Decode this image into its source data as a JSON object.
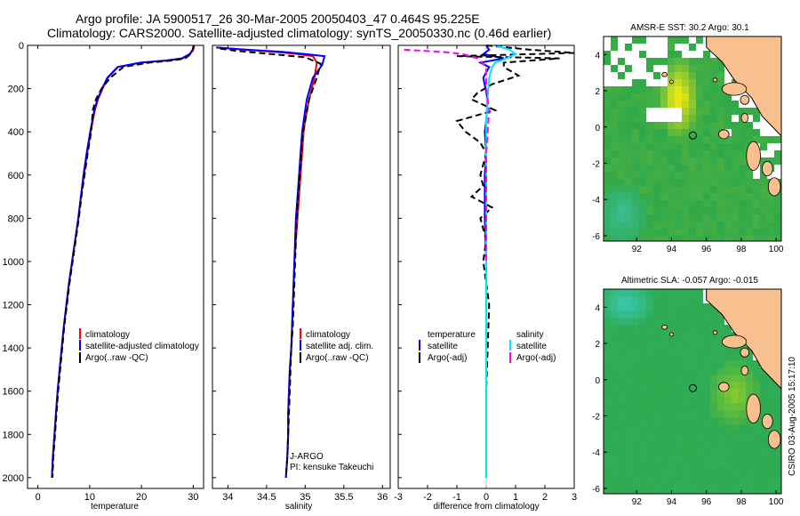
{
  "header": {
    "title_line1": "Argo profile: JA 5900517_26 30-Mar-2005 20050403_47 0.464S 95.225E",
    "title_line2": "Climatology: CARS2000. Satellite-adjusted climatology: synTS_20050330.nc (0.46d earlier)"
  },
  "footer": {
    "credit": "CSIRO 03-Aug-2005 15:17:10"
  },
  "colors": {
    "climatology": "#ff0000",
    "satellite": "#0000ff",
    "argo": "#000000",
    "sat_salinity": "#00e5ff",
    "argo_salinity": "#ff00ff",
    "land": "#f9c08f",
    "ocean": "#2fa84a",
    "hot": "#f0f000"
  },
  "chart_data": [
    {
      "type": "line",
      "id": "temperature",
      "xlabel": "temperature",
      "xlim": [
        -2,
        32
      ],
      "ylim": [
        0,
        2050
      ],
      "y_inverted": true,
      "xticks": [
        0,
        10,
        20,
        30
      ],
      "yticks": [
        0,
        200,
        400,
        600,
        800,
        1000,
        1200,
        1400,
        1600,
        1800,
        2000
      ],
      "legend": [
        "climatology",
        "satellite-adjusted climatology",
        "Argo(..raw -QC)"
      ],
      "series": [
        {
          "name": "climatology",
          "color": "#ff0000",
          "dash": false,
          "x": [
            30.2,
            30.0,
            29.4,
            28.0,
            25.0,
            20.0,
            15.5,
            13.5,
            12.5,
            11.6,
            11.0,
            10.2,
            9.5,
            8.9,
            8.3,
            7.8,
            7.2,
            6.6,
            6.0,
            5.5,
            5.0,
            4.6,
            4.2,
            3.8,
            3.5,
            3.2,
            2.9,
            2.7
          ],
          "y": [
            0,
            20,
            40,
            60,
            70,
            80,
            100,
            150,
            200,
            250,
            300,
            400,
            500,
            600,
            700,
            800,
            900,
            1000,
            1100,
            1200,
            1300,
            1400,
            1500,
            1600,
            1700,
            1800,
            1900,
            2000
          ]
        },
        {
          "name": "satellite-adjusted climatology",
          "color": "#0000ff",
          "dash": false,
          "x": [
            30.1,
            29.9,
            29.3,
            27.8,
            24.8,
            19.8,
            15.4,
            13.4,
            12.4,
            11.5,
            10.9,
            10.1,
            9.4,
            8.8,
            8.3,
            7.8,
            7.2,
            6.6,
            6.0,
            5.5,
            5.0,
            4.6,
            4.2,
            3.8,
            3.5,
            3.2,
            2.9,
            2.7
          ],
          "y": [
            0,
            20,
            40,
            60,
            70,
            80,
            100,
            150,
            200,
            250,
            300,
            400,
            500,
            600,
            700,
            800,
            900,
            1000,
            1100,
            1200,
            1300,
            1400,
            1500,
            1600,
            1700,
            1800,
            1900,
            2000
          ]
        },
        {
          "name": "Argo(..raw -QC)",
          "color": "#000000",
          "dash": true,
          "x": [
            30.1,
            29.9,
            29.5,
            28.5,
            26.0,
            21.5,
            16.5,
            14.0,
            12.3,
            11.2,
            10.6,
            10.3,
            9.6,
            9.0,
            8.4,
            7.9,
            7.3,
            6.7,
            6.1,
            5.6,
            5.1,
            4.7,
            4.3,
            3.9,
            3.6,
            3.3,
            3.0,
            2.8
          ],
          "y": [
            0,
            20,
            40,
            60,
            70,
            80,
            100,
            150,
            200,
            250,
            300,
            400,
            500,
            600,
            700,
            800,
            900,
            1000,
            1100,
            1200,
            1300,
            1400,
            1500,
            1600,
            1700,
            1800,
            1900,
            2000
          ]
        }
      ]
    },
    {
      "type": "line",
      "id": "salinity",
      "xlabel": "salinity",
      "xlim": [
        33.8,
        36.1
      ],
      "ylim": [
        0,
        2050
      ],
      "y_inverted": true,
      "xticks": [
        34,
        34.5,
        35,
        35.5,
        36
      ],
      "legend": [
        "climatology",
        "satellite adj. clim.",
        "Argo(..raw -QC)"
      ],
      "annotations": [
        "J-ARGO",
        "PI: kensuke Takeuchi"
      ],
      "series": [
        {
          "name": "climatology",
          "color": "#ff0000",
          "dash": false,
          "x": [
            33.85,
            34.2,
            34.6,
            34.9,
            35.1,
            35.15,
            35.12,
            35.05,
            35.0,
            34.98,
            34.96,
            34.94,
            34.92,
            34.9,
            34.88,
            34.86,
            34.85,
            34.84,
            34.83,
            34.82,
            34.8,
            34.79,
            34.78,
            34.78,
            34.77,
            34.76,
            34.75
          ],
          "y": [
            10,
            20,
            30,
            40,
            50,
            80,
            150,
            250,
            350,
            400,
            500,
            600,
            700,
            800,
            900,
            1000,
            1100,
            1200,
            1300,
            1400,
            1500,
            1600,
            1700,
            1800,
            1900,
            1950,
            2000
          ]
        },
        {
          "name": "satellite adj. clim.",
          "color": "#0000ff",
          "dash": false,
          "x": [
            33.85,
            34.25,
            34.7,
            35.0,
            35.25,
            35.22,
            35.1,
            35.02,
            34.98,
            34.96,
            34.94,
            34.92,
            34.9,
            34.88,
            34.87,
            34.86,
            34.85,
            34.84,
            34.83,
            34.82,
            34.8,
            34.79,
            34.78,
            34.78,
            34.77,
            34.76,
            34.75
          ],
          "y": [
            10,
            20,
            30,
            40,
            50,
            90,
            150,
            250,
            350,
            400,
            500,
            600,
            700,
            800,
            900,
            1000,
            1100,
            1200,
            1300,
            1400,
            1500,
            1600,
            1700,
            1800,
            1900,
            1950,
            2000
          ]
        },
        {
          "name": "Argo(..raw -QC)",
          "color": "#000000",
          "dash": true,
          "x": [
            33.9,
            34.1,
            34.4,
            34.7,
            35.0,
            35.2,
            35.15,
            35.05,
            35.0,
            34.97,
            34.95,
            34.93,
            34.91,
            34.89,
            34.88,
            34.87,
            34.86,
            34.85,
            34.84,
            34.82,
            34.81,
            34.8,
            34.79,
            34.78,
            34.77,
            34.76,
            34.75
          ],
          "y": [
            15,
            25,
            35,
            45,
            55,
            85,
            150,
            250,
            350,
            400,
            500,
            600,
            700,
            800,
            900,
            1000,
            1100,
            1200,
            1300,
            1400,
            1500,
            1600,
            1700,
            1800,
            1900,
            1950,
            2000
          ]
        }
      ]
    },
    {
      "type": "line",
      "id": "difference",
      "xlabel": "difference from climatology",
      "xlim": [
        -3,
        3
      ],
      "ylim": [
        0,
        2050
      ],
      "y_inverted": true,
      "xticks": [
        -3,
        -2,
        -1,
        0,
        1,
        2,
        3
      ],
      "legend_left": [
        "temperature",
        "satellite",
        "Argo(-adj)"
      ],
      "legend_right": [
        "salinity",
        "satellite",
        "Argo(-adj)"
      ],
      "series": [
        {
          "name": "satellite",
          "color": "#0000ff",
          "dash": false,
          "x": [
            0.0,
            0.1,
            -0.1,
            0.6,
            -0.2,
            0.1,
            -0.1,
            0.05,
            0.0,
            -0.05,
            0.0,
            -0.05,
            -0.05,
            -0.05,
            0.0,
            0.0,
            0.0,
            0.0,
            0.0,
            0.0
          ],
          "y": [
            0,
            20,
            40,
            60,
            80,
            100,
            150,
            250,
            350,
            400,
            500,
            600,
            700,
            800,
            1000,
            1200,
            1400,
            1600,
            1800,
            2000
          ]
        },
        {
          "name": "Argo(-adj)",
          "color": "#000000",
          "dash": true,
          "x": [
            0.0,
            1.5,
            3.0,
            -1.0,
            2.5,
            0.6,
            0.6,
            1.1,
            0.2,
            -0.3,
            -0.5,
            0.3,
            -1.0,
            -0.7,
            -0.2,
            0.0,
            -0.1,
            -0.2,
            -0.1,
            -0.5,
            0.2,
            -0.2,
            0.0,
            -0.1,
            0.1,
            0.0,
            0.0
          ],
          "y": [
            0,
            20,
            35,
            50,
            60,
            80,
            100,
            140,
            180,
            220,
            250,
            300,
            350,
            400,
            450,
            500,
            550,
            600,
            650,
            700,
            750,
            800,
            900,
            1000,
            1200,
            1600,
            2000
          ]
        },
        {
          "name": "satellite",
          "color": "#00e5ff",
          "dash": false,
          "x": [
            0.3,
            0.8,
            1.0,
            0.7,
            0.3,
            0.2,
            0.1,
            0.05,
            0.0,
            0.0,
            0.0,
            0.0,
            0.0,
            0.0,
            0.0,
            0.0
          ],
          "y": [
            0,
            20,
            40,
            60,
            80,
            100,
            150,
            250,
            350,
            500,
            700,
            900,
            1200,
            1500,
            1800,
            2000
          ]
        },
        {
          "name": "Argo(-adj)",
          "color": "#ff00ff",
          "dash": true,
          "x": [
            -2.8,
            -1.5,
            -0.8,
            -0.3,
            0.0,
            0.0,
            0.1,
            0.05,
            0.0,
            0.0,
            0.0,
            0.0
          ],
          "y": [
            20,
            30,
            40,
            60,
            100,
            200,
            300,
            400,
            500,
            700,
            900,
            1000
          ]
        }
      ]
    },
    {
      "type": "heatmap",
      "id": "sst-map",
      "title": "AMSR-E SST: 30.2 Argo: 30.1",
      "xlim": [
        90.1,
        100.3
      ],
      "ylim": [
        -6.3,
        5.0
      ],
      "xticks": [
        92,
        94,
        96,
        98,
        100
      ],
      "yticks": [
        -6,
        -4,
        -2,
        0,
        2,
        4
      ],
      "argo_position": {
        "lon": 95.225,
        "lat": -0.464
      }
    },
    {
      "type": "heatmap",
      "id": "sla-map",
      "title": "Altimetric SLA: -0.057 Argo: -0.015",
      "xlim": [
        90.1,
        100.3
      ],
      "ylim": [
        -6.3,
        5.0
      ],
      "xticks": [
        92,
        94,
        96,
        98,
        100
      ],
      "yticks": [
        -6,
        -4,
        -2,
        0,
        2,
        4
      ],
      "argo_position": {
        "lon": 95.225,
        "lat": -0.464
      }
    }
  ]
}
